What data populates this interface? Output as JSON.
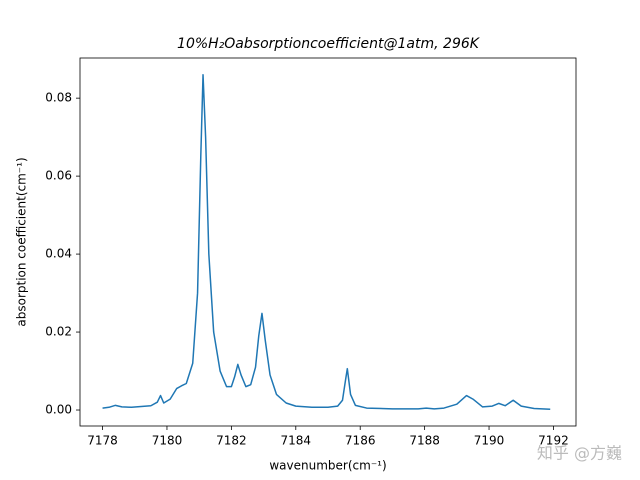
{
  "chart_data": {
    "type": "line",
    "title": "10%H₂Oabsorptioncoefficient@1atm, 296K",
    "x_label": "wavenumber(cm⁻¹)",
    "y_label": "absorption coefficient(cm⁻¹)",
    "x": [
      7178.0,
      7178.2,
      7178.4,
      7178.6,
      7178.9,
      7179.2,
      7179.5,
      7179.7,
      7179.8,
      7179.9,
      7180.1,
      7180.3,
      7180.45,
      7180.6,
      7180.8,
      7180.95,
      7181.05,
      7181.12,
      7181.2,
      7181.3,
      7181.45,
      7181.65,
      7181.85,
      7182.0,
      7182.1,
      7182.2,
      7182.3,
      7182.45,
      7182.6,
      7182.75,
      7182.85,
      7182.95,
      7183.05,
      7183.2,
      7183.4,
      7183.7,
      7184.0,
      7184.5,
      7185.0,
      7185.3,
      7185.45,
      7185.55,
      7185.6,
      7185.7,
      7185.85,
      7186.2,
      7187.0,
      7187.8,
      7188.05,
      7188.3,
      7188.6,
      7189.0,
      7189.3,
      7189.5,
      7189.8,
      7190.1,
      7190.3,
      7190.5,
      7190.75,
      7191.0,
      7191.4,
      7191.9
    ],
    "series": [
      {
        "color": "#1f77b4",
        "values": [
          0.0005,
          0.0007,
          0.0012,
          0.0008,
          0.0007,
          0.0009,
          0.0011,
          0.002,
          0.0037,
          0.0018,
          0.0028,
          0.0055,
          0.0062,
          0.0068,
          0.012,
          0.03,
          0.065,
          0.086,
          0.07,
          0.04,
          0.02,
          0.01,
          0.006,
          0.006,
          0.0085,
          0.0117,
          0.009,
          0.006,
          0.0065,
          0.011,
          0.019,
          0.0248,
          0.018,
          0.009,
          0.004,
          0.0018,
          0.001,
          0.0007,
          0.0007,
          0.001,
          0.0025,
          0.008,
          0.0106,
          0.004,
          0.0012,
          0.0005,
          0.0003,
          0.0003,
          0.0005,
          0.0003,
          0.0005,
          0.0015,
          0.0037,
          0.0028,
          0.0008,
          0.001,
          0.0017,
          0.0011,
          0.0025,
          0.001,
          0.0004,
          0.0002
        ]
      }
    ],
    "xlim": [
      7177.3,
      7192.7
    ],
    "ylim": [
      -0.0041,
      0.0903
    ],
    "xticks": [
      7178,
      7180,
      7182,
      7184,
      7186,
      7188,
      7190,
      7192
    ],
    "yticks": [
      {
        "value": 0,
        "label": "0.00"
      },
      0.02,
      0.04,
      0.06,
      0.08
    ]
  },
  "watermark": "知乎 @方巍"
}
